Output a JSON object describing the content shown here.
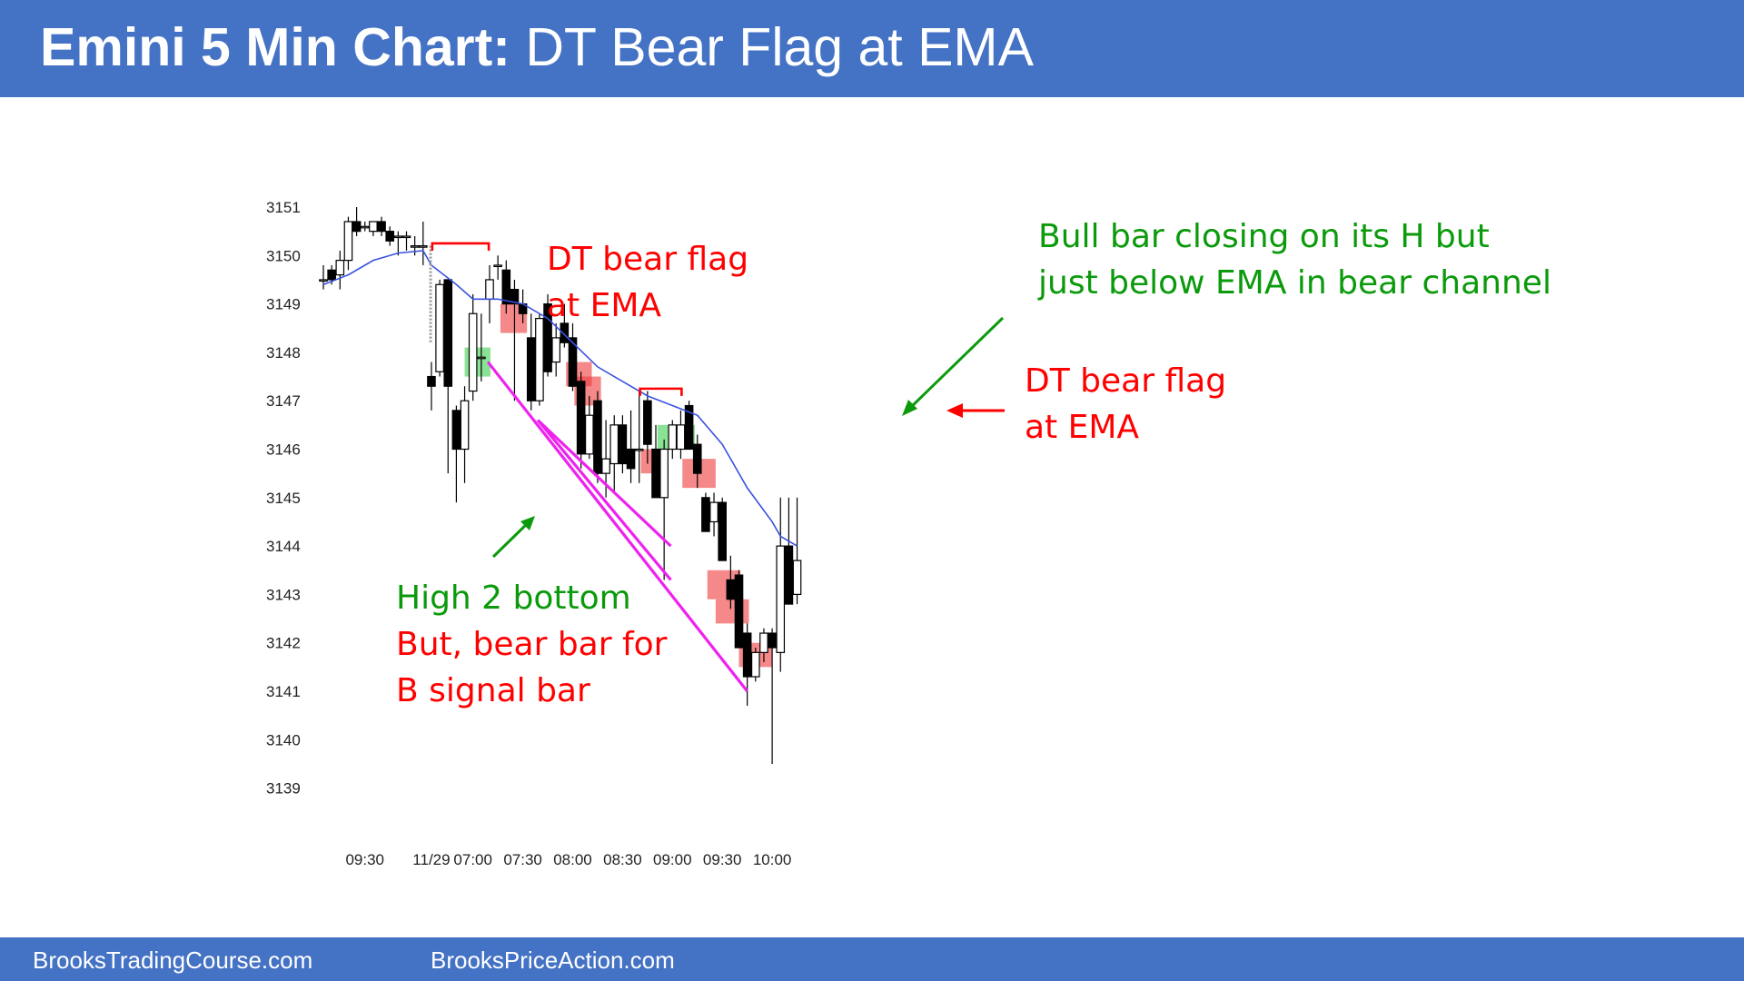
{
  "header": {
    "title_bold": "Emini 5 Min Chart:",
    "title_rest": " DT Bear Flag at EMA"
  },
  "footer": {
    "left": "BrooksTradingCourse.com",
    "right": "BrooksPriceAction.com"
  },
  "colors": {
    "header": "#4472c4",
    "bull_zone": "#4cd35a",
    "bear_zone": "#ee3b3b",
    "annot_red": "#ff0000",
    "annot_green": "#0b9a0b",
    "ema": "#3a52e0",
    "trendline": "#ee22ee"
  },
  "chart_data": {
    "type": "candlestick",
    "title": "",
    "ylim": [
      3138.6,
      3151.6
    ],
    "y_ticks": [
      3139,
      3140,
      3141,
      3142,
      3143,
      3144,
      3145,
      3146,
      3147,
      3148,
      3149,
      3150,
      3151
    ],
    "x_ticks": [
      {
        "label": "09:30",
        "bar": 5
      },
      {
        "label": "11/29",
        "bar": 13
      },
      {
        "label": "07:00",
        "bar": 18
      },
      {
        "label": "07:30",
        "bar": 24
      },
      {
        "label": "08:00",
        "bar": 30
      },
      {
        "label": "08:30",
        "bar": 36
      },
      {
        "label": "09:00",
        "bar": 42
      },
      {
        "label": "09:30",
        "bar": 48
      },
      {
        "label": "10:00",
        "bar": 54
      }
    ],
    "bars": [
      {
        "i": 0,
        "o": 3149.5,
        "h": 3149.8,
        "l": 3149.3,
        "c": 3149.5
      },
      {
        "i": 1,
        "o": 3149.7,
        "h": 3149.8,
        "l": 3149.4,
        "c": 3149.5
      },
      {
        "i": 2,
        "o": 3149.6,
        "h": 3150.1,
        "l": 3149.3,
        "c": 3149.9
      },
      {
        "i": 3,
        "o": 3149.9,
        "h": 3150.8,
        "l": 3149.7,
        "c": 3150.7
      },
      {
        "i": 4,
        "o": 3150.7,
        "h": 3151.0,
        "l": 3150.4,
        "c": 3150.5
      },
      {
        "i": 5,
        "o": 3150.6,
        "h": 3150.7,
        "l": 3150.5,
        "c": 3150.6
      },
      {
        "i": 6,
        "o": 3150.5,
        "h": 3150.7,
        "l": 3150.4,
        "c": 3150.7
      },
      {
        "i": 7,
        "o": 3150.7,
        "h": 3150.8,
        "l": 3150.4,
        "c": 3150.5
      },
      {
        "i": 8,
        "o": 3150.5,
        "h": 3150.6,
        "l": 3150.2,
        "c": 3150.3
      },
      {
        "i": 9,
        "o": 3150.4,
        "h": 3150.5,
        "l": 3150.0,
        "c": 3150.4
      },
      {
        "i": 10,
        "o": 3150.4,
        "h": 3150.5,
        "l": 3150.1,
        "c": 3150.4
      },
      {
        "i": 11,
        "o": 3150.2,
        "h": 3150.4,
        "l": 3150.0,
        "c": 3150.2
      },
      {
        "i": 12,
        "o": 3150.2,
        "h": 3150.7,
        "l": 3149.8,
        "c": 3150.2
      },
      {
        "i": 13,
        "o": 3147.5,
        "h": 3147.8,
        "l": 3146.8,
        "c": 3147.3
      },
      {
        "i": 14,
        "o": 3147.6,
        "h": 3149.5,
        "l": 3147.5,
        "c": 3149.4
      },
      {
        "i": 15,
        "o": 3149.5,
        "h": 3149.5,
        "l": 3145.5,
        "c": 3147.3
      },
      {
        "i": 16,
        "o": 3146.8,
        "h": 3146.9,
        "l": 3144.9,
        "c": 3146.0
      },
      {
        "i": 17,
        "o": 3146.0,
        "h": 3147.3,
        "l": 3145.3,
        "c": 3147.0
      },
      {
        "i": 18,
        "o": 3147.2,
        "h": 3149.2,
        "l": 3147.0,
        "c": 3148.8
      },
      {
        "i": 19,
        "o": 3147.9,
        "h": 3148.8,
        "l": 3147.4,
        "c": 3147.9
      },
      {
        "i": 20,
        "o": 3149.1,
        "h": 3149.8,
        "l": 3148.6,
        "c": 3149.5
      },
      {
        "i": 21,
        "o": 3149.8,
        "h": 3150.0,
        "l": 3149.5,
        "c": 3149.8
      },
      {
        "i": 22,
        "o": 3149.7,
        "h": 3149.9,
        "l": 3148.8,
        "c": 3149.0
      },
      {
        "i": 23,
        "o": 3149.3,
        "h": 3149.5,
        "l": 3147.0,
        "c": 3149.0
      },
      {
        "i": 24,
        "o": 3149.0,
        "h": 3149.3,
        "l": 3148.6,
        "c": 3148.8
      },
      {
        "i": 25,
        "o": 3148.3,
        "h": 3148.8,
        "l": 3146.8,
        "c": 3147.0
      },
      {
        "i": 26,
        "o": 3147.0,
        "h": 3148.8,
        "l": 3146.9,
        "c": 3148.7
      },
      {
        "i": 27,
        "o": 3149.0,
        "h": 3149.2,
        "l": 3147.5,
        "c": 3147.6
      },
      {
        "i": 28,
        "o": 3147.8,
        "h": 3148.6,
        "l": 3147.5,
        "c": 3148.3
      },
      {
        "i": 29,
        "o": 3148.6,
        "h": 3149.0,
        "l": 3148.1,
        "c": 3148.2
      },
      {
        "i": 30,
        "o": 3148.3,
        "h": 3148.6,
        "l": 3147.2,
        "c": 3147.3
      },
      {
        "i": 31,
        "o": 3147.4,
        "h": 3147.6,
        "l": 3145.6,
        "c": 3145.9
      },
      {
        "i": 32,
        "o": 3145.9,
        "h": 3147.1,
        "l": 3145.8,
        "c": 3146.7
      },
      {
        "i": 33,
        "o": 3147.0,
        "h": 3147.2,
        "l": 3145.3,
        "c": 3145.5
      },
      {
        "i": 34,
        "o": 3145.5,
        "h": 3146.6,
        "l": 3145.0,
        "c": 3145.8
      },
      {
        "i": 35,
        "o": 3145.7,
        "h": 3146.7,
        "l": 3145.1,
        "c": 3146.5
      },
      {
        "i": 36,
        "o": 3146.5,
        "h": 3146.7,
        "l": 3145.5,
        "c": 3145.7
      },
      {
        "i": 37,
        "o": 3146.0,
        "h": 3146.8,
        "l": 3145.3,
        "c": 3145.6
      },
      {
        "i": 38,
        "o": 3146.0,
        "h": 3147.2,
        "l": 3145.3,
        "c": 3146.0
      },
      {
        "i": 39,
        "o": 3147.0,
        "h": 3147.2,
        "l": 3145.7,
        "c": 3146.1
      },
      {
        "i": 40,
        "o": 3146.0,
        "h": 3146.5,
        "l": 3145.0,
        "c": 3145.0
      },
      {
        "i": 41,
        "o": 3145.0,
        "h": 3146.2,
        "l": 3143.3,
        "c": 3146.0
      },
      {
        "i": 42,
        "o": 3146.0,
        "h": 3146.6,
        "l": 3145.8,
        "c": 3146.5
      },
      {
        "i": 43,
        "o": 3146.0,
        "h": 3146.8,
        "l": 3145.8,
        "c": 3146.5
      },
      {
        "i": 44,
        "o": 3146.9,
        "h": 3147.0,
        "l": 3146.0,
        "c": 3146.0
      },
      {
        "i": 45,
        "o": 3146.1,
        "h": 3146.3,
        "l": 3145.2,
        "c": 3145.5
      },
      {
        "i": 46,
        "o": 3145.0,
        "h": 3145.1,
        "l": 3144.4,
        "c": 3144.3
      },
      {
        "i": 47,
        "o": 3144.5,
        "h": 3145.1,
        "l": 3144.2,
        "c": 3144.9
      },
      {
        "i": 48,
        "o": 3144.9,
        "h": 3145.0,
        "l": 3143.7,
        "c": 3143.7
      },
      {
        "i": 49,
        "o": 3143.3,
        "h": 3143.8,
        "l": 3142.7,
        "c": 3142.9
      },
      {
        "i": 50,
        "o": 3143.4,
        "h": 3143.5,
        "l": 3141.9,
        "c": 3141.9
      },
      {
        "i": 51,
        "o": 3142.2,
        "h": 3142.4,
        "l": 3140.7,
        "c": 3141.3
      },
      {
        "i": 52,
        "o": 3141.3,
        "h": 3141.9,
        "l": 3141.2,
        "c": 3141.8
      },
      {
        "i": 53,
        "o": 3141.8,
        "h": 3142.3,
        "l": 3141.6,
        "c": 3142.2
      },
      {
        "i": 54,
        "o": 3142.2,
        "h": 3142.3,
        "l": 3139.5,
        "c": 3141.9
      },
      {
        "i": 55,
        "o": 3141.8,
        "h": 3145.0,
        "l": 3141.4,
        "c": 3144.0
      },
      {
        "i": 56,
        "o": 3144.0,
        "h": 3145.0,
        "l": 3142.8,
        "c": 3142.8
      },
      {
        "i": 57,
        "o": 3143.0,
        "h": 3145.0,
        "l": 3142.8,
        "c": 3143.7
      }
    ],
    "ema": [
      [
        0,
        3149.4
      ],
      [
        3,
        3149.6
      ],
      [
        6,
        3149.9
      ],
      [
        9,
        3150.05
      ],
      [
        12,
        3150.1
      ],
      [
        13,
        3149.8
      ],
      [
        16,
        3149.4
      ],
      [
        18,
        3149.1
      ],
      [
        21,
        3149.1
      ],
      [
        24,
        3149.0
      ],
      [
        27,
        3148.7
      ],
      [
        30,
        3148.2
      ],
      [
        33,
        3147.7
      ],
      [
        36,
        3147.4
      ],
      [
        39,
        3147.1
      ],
      [
        42,
        3146.9
      ],
      [
        45,
        3146.7
      ],
      [
        48,
        3146.1
      ],
      [
        51,
        3145.2
      ],
      [
        54,
        3144.5
      ],
      [
        55,
        3144.2
      ],
      [
        57,
        3144.0
      ]
    ],
    "bull_zones": [
      {
        "x0": 17.0,
        "x1": 20.1,
        "y_top": 3148.1,
        "y_bot": 3147.5
      },
      {
        "x0": 40.2,
        "x1": 44.7,
        "y_top": 3146.5,
        "y_bot": 3146.0
      }
    ],
    "bear_zones": [
      {
        "x0": 21.3,
        "x1": 24.5,
        "y_top": 3149.0,
        "y_bot": 3148.4
      },
      {
        "x0": 29.2,
        "x1": 32.3,
        "y_top": 3147.8,
        "y_bot": 3147.3
      },
      {
        "x0": 30.2,
        "x1": 33.4,
        "y_top": 3147.5,
        "y_bot": 3146.9
      },
      {
        "x0": 38.2,
        "x1": 41.3,
        "y_top": 3146.0,
        "y_bot": 3145.5
      },
      {
        "x0": 43.2,
        "x1": 47.2,
        "y_top": 3145.8,
        "y_bot": 3145.2
      },
      {
        "x0": 46.2,
        "x1": 50.2,
        "y_top": 3143.5,
        "y_bot": 3142.9
      },
      {
        "x0": 47.2,
        "x1": 51.2,
        "y_top": 3142.9,
        "y_bot": 3142.4
      },
      {
        "x0": 50.0,
        "x1": 54.0,
        "y_top": 3142.0,
        "y_bot": 3141.5
      }
    ],
    "resistance_lines": [
      {
        "x0": 13.1,
        "x1": 19.9,
        "y": 3150.25
      },
      {
        "x0": 38.1,
        "x1": 43.1,
        "y": 3147.25
      }
    ],
    "trendlines": [
      {
        "x0": 19.8,
        "y0": 3147.8,
        "x1": 51.0,
        "y1": 3141.0
      },
      {
        "x0": 25.8,
        "y0": 3146.6,
        "x1": 41.8,
        "y1": 3144.0
      },
      {
        "x0": 25.8,
        "y0": 3146.6,
        "x1": 41.8,
        "y1": 3143.3
      }
    ],
    "annotations": [
      {
        "lines": [
          "DT bear flag",
          "at EMA"
        ],
        "color": "red",
        "pos": "top-center"
      },
      {
        "lines": [
          "Bull bar closing on its H but",
          "just below EMA in bear channel"
        ],
        "color": "green",
        "pos": "top-right"
      },
      {
        "lines": [
          "DT bear flag",
          "at EMA"
        ],
        "color": "red",
        "pos": "right"
      },
      {
        "lines": [
          "High 2 bottom"
        ],
        "color": "green",
        "pos": "bottom-left"
      },
      {
        "lines": [
          "But, bear bar for",
          "B signal bar"
        ],
        "color": "red",
        "pos": "bottom-left"
      }
    ]
  }
}
